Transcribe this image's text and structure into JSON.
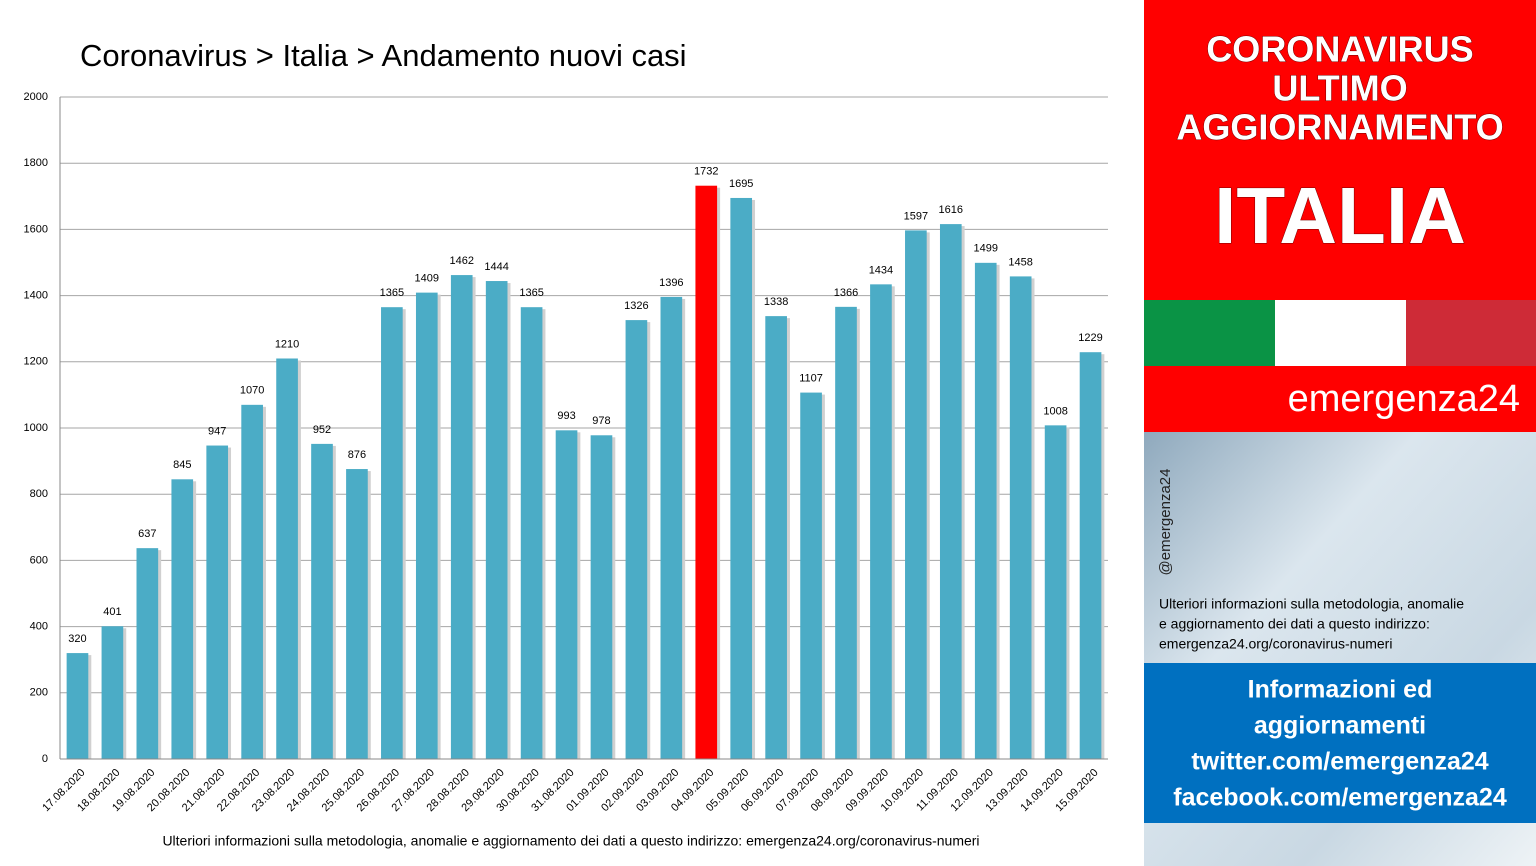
{
  "chart_data": {
    "type": "bar",
    "title": "Coronavirus > Italia > Andamento nuovi casi",
    "categories": [
      "17.08.2020",
      "18.08.2020",
      "19.08.2020",
      "20.08.2020",
      "21.08.2020",
      "22.08.2020",
      "23.08.2020",
      "24.08.2020",
      "25.08.2020",
      "26.08.2020",
      "27.08.2020",
      "28.08.2020",
      "29.08.2020",
      "30.08.2020",
      "31.08.2020",
      "01.09.2020",
      "02.09.2020",
      "03.09.2020",
      "04.09.2020",
      "05.09.2020",
      "06.09.2020",
      "07.09.2020",
      "08.09.2020",
      "09.09.2020",
      "10.09.2020",
      "11.09.2020",
      "12.09.2020",
      "13.09.2020",
      "14.09.2020",
      "15.09.2020"
    ],
    "values": [
      320,
      401,
      637,
      845,
      947,
      1070,
      1210,
      952,
      876,
      1365,
      1409,
      1462,
      1444,
      1365,
      993,
      978,
      1326,
      1396,
      1732,
      1695,
      1338,
      1107,
      1366,
      1434,
      1597,
      1616,
      1499,
      1458,
      1008,
      1229
    ],
    "color": "#4bacc6",
    "highlight": "04.09.2020",
    "highlight_color": "#ff0000",
    "ylim": [
      0,
      2000
    ],
    "yticks": [
      0,
      200,
      400,
      600,
      800,
      1000,
      1200,
      1400,
      1600,
      1800,
      2000
    ],
    "grid": true,
    "footnote": "Ulteriori informazioni sulla metodologia, anomalie e aggiornamento dei dati a questo indirizzo: emergenza24.org/coronavirus-numeri"
  },
  "sidebar": {
    "heading": [
      "CORONAVIRUS",
      "ULTIMO",
      "AGGIORNAMENTO"
    ],
    "country": "ITALIA",
    "brand": "emergenza24",
    "handle": "@emergenza24",
    "note": [
      "Ulteriori informazioni sulla metodologia, anomalie",
      "e aggiornamento dei dati a questo indirizzo:",
      "emergenza24.org/coronavirus-numeri"
    ],
    "info": [
      "Informazioni ed",
      "aggiornamenti",
      "twitter.com/emergenza24",
      "facebook.com/emergenza24"
    ]
  }
}
